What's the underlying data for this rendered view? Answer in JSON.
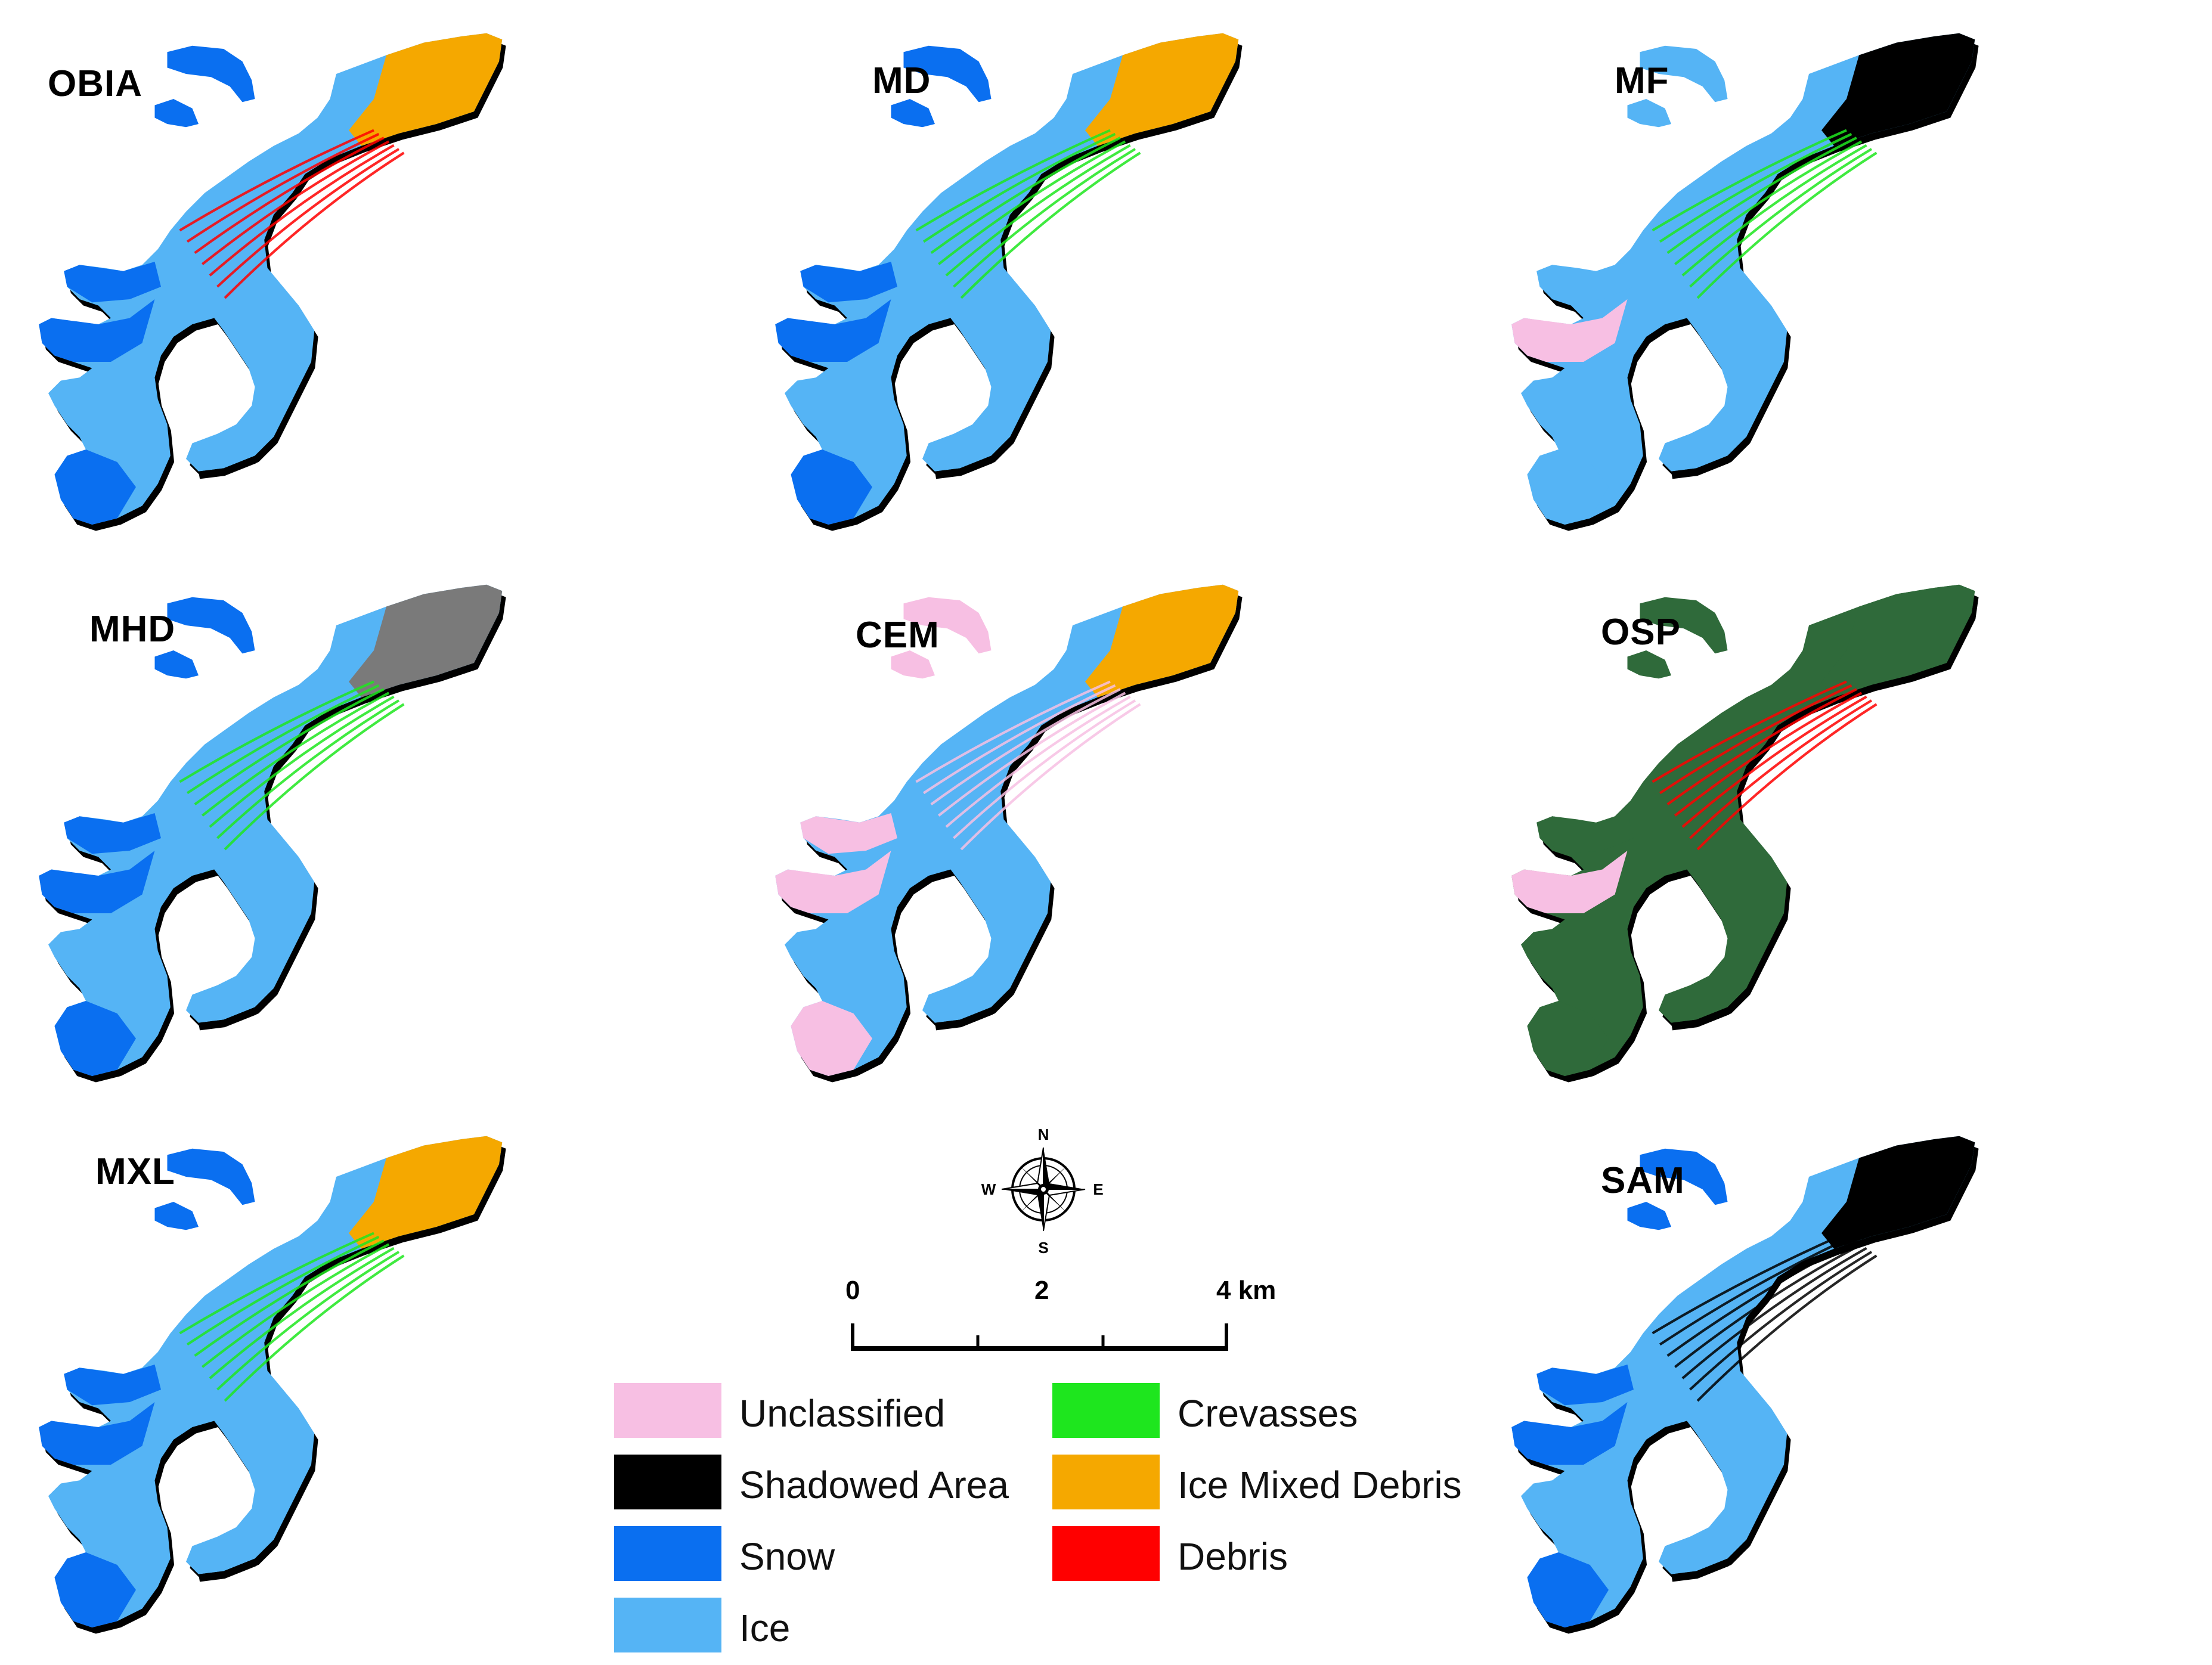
{
  "figure": {
    "panels": [
      {
        "label": "OBIA",
        "scheme": "obia"
      },
      {
        "label": "MD",
        "scheme": "md"
      },
      {
        "label": "MF",
        "scheme": "mf"
      },
      {
        "label": "MHD",
        "scheme": "mhd"
      },
      {
        "label": "CEM",
        "scheme": "cem"
      },
      {
        "label": "OSP",
        "scheme": "osp"
      },
      {
        "label": "MXL",
        "scheme": "mxl"
      },
      {
        "label": "SAM",
        "scheme": "sam"
      }
    ],
    "compass": {
      "n": "N",
      "s": "S",
      "e": "E",
      "w": "W"
    },
    "scale_bar": {
      "labels": [
        "0",
        "2",
        "4 km"
      ]
    },
    "legend": [
      {
        "label": "Unclassified",
        "color": "#f7bfe3"
      },
      {
        "label": "Crevasses",
        "color": "#1ee61e"
      },
      {
        "label": "Shadowed Area",
        "color": "#000000"
      },
      {
        "label": "Ice Mixed Debris",
        "color": "#f5a800"
      },
      {
        "label": "Snow",
        "color": "#0a6ff0"
      },
      {
        "label": "Debris",
        "color": "#ff0000"
      },
      {
        "label": "Ice",
        "color": "#55b4f5"
      }
    ],
    "colors": {
      "snow": "#0a6ff0",
      "ice": "#55b4f5",
      "shadow": "#000000",
      "unclassified": "#f7bfe3",
      "crevasses": "#1ee61e",
      "ice_mixed_debris": "#f5a800",
      "debris": "#ff0000",
      "gray": "#7a7a7a",
      "dark_green": "#2f6a3a"
    }
  }
}
